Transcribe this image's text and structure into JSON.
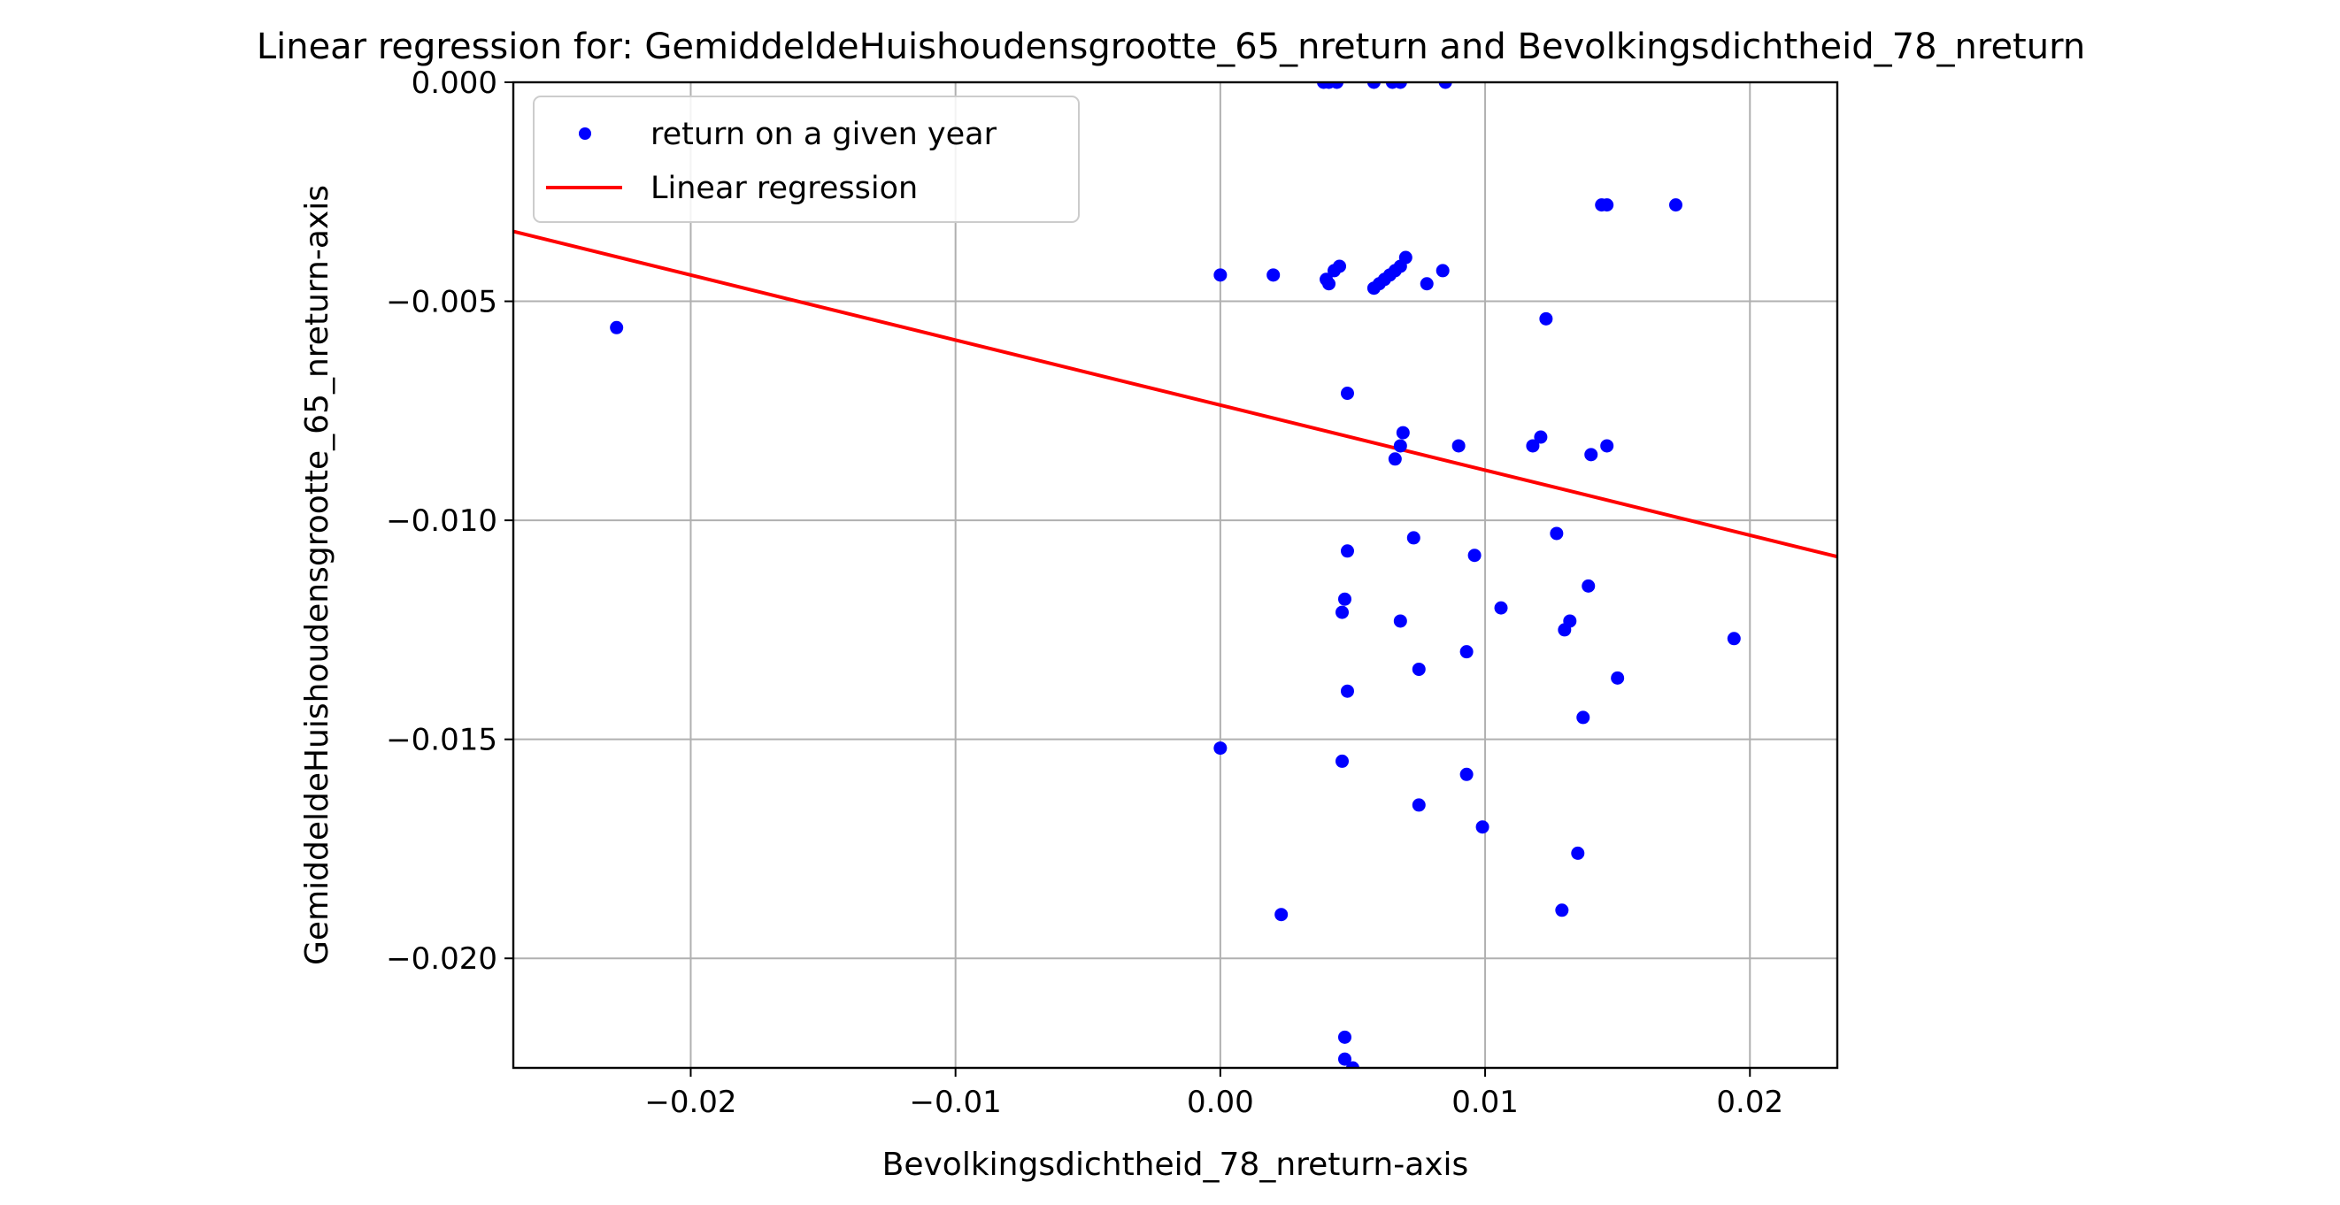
{
  "chart_data": {
    "type": "scatter",
    "title": "Linear regression for: GemiddeldeHuishoudensgrootte_65_nreturn and Bevolkingsdichtheid_78_nreturn",
    "xlabel": "Bevolkingsdichtheid_78_nreturn-axis",
    "ylabel": "GemiddeldeHuishoudensgrootte_65_nreturn-axis",
    "xlim": [
      -0.0267,
      0.0233
    ],
    "ylim": [
      -0.0225,
      0.0
    ],
    "grid": true,
    "legend_position": "top-left",
    "x_ticks": [
      -0.02,
      -0.01,
      0.0,
      0.01,
      0.02
    ],
    "x_tick_labels": [
      "−0.02",
      "−0.01",
      "0.00",
      "0.01",
      "0.02"
    ],
    "y_ticks": [
      0.0,
      -0.005,
      -0.01,
      -0.015,
      -0.02
    ],
    "y_tick_labels": [
      "0.000",
      "−0.005",
      "−0.010",
      "−0.015",
      "−0.020"
    ],
    "colors": {
      "points": "#0000ff",
      "regression": "#ff0000",
      "grid": "#b0b0b0",
      "axes": "#000000"
    },
    "series": [
      {
        "name": "return on a given year",
        "kind": "scatter",
        "points": [
          [
            0.0039,
            0.0
          ],
          [
            0.0041,
            0.0
          ],
          [
            0.0044,
            0.0
          ],
          [
            0.0058,
            0.0
          ],
          [
            0.0065,
            0.0
          ],
          [
            0.0068,
            0.0
          ],
          [
            0.0085,
            0.0
          ],
          [
            0.0144,
            -0.0028
          ],
          [
            0.0146,
            -0.0028
          ],
          [
            0.0172,
            -0.0028
          ],
          [
            0.0,
            -0.0044
          ],
          [
            0.002,
            -0.0044
          ],
          [
            0.004,
            -0.0045
          ],
          [
            0.0041,
            -0.0046
          ],
          [
            0.0043,
            -0.0043
          ],
          [
            0.0045,
            -0.0042
          ],
          [
            0.0058,
            -0.0047
          ],
          [
            0.006,
            -0.0046
          ],
          [
            0.0062,
            -0.0045
          ],
          [
            0.0064,
            -0.0044
          ],
          [
            0.0066,
            -0.0043
          ],
          [
            0.0068,
            -0.0042
          ],
          [
            0.007,
            -0.004
          ],
          [
            0.0078,
            -0.0046
          ],
          [
            0.0084,
            -0.0043
          ],
          [
            0.0123,
            -0.0054
          ],
          [
            -0.0228,
            -0.0056
          ],
          [
            0.0048,
            -0.0071
          ],
          [
            0.0069,
            -0.008
          ],
          [
            0.0068,
            -0.0083
          ],
          [
            0.0066,
            -0.0086
          ],
          [
            0.009,
            -0.0083
          ],
          [
            0.0118,
            -0.0083
          ],
          [
            0.0121,
            -0.0081
          ],
          [
            0.014,
            -0.0085
          ],
          [
            0.0146,
            -0.0083
          ],
          [
            0.0073,
            -0.0104
          ],
          [
            0.0127,
            -0.0103
          ],
          [
            0.0048,
            -0.0107
          ],
          [
            0.0096,
            -0.0108
          ],
          [
            0.0139,
            -0.0115
          ],
          [
            0.0047,
            -0.0118
          ],
          [
            0.0046,
            -0.0121
          ],
          [
            0.0106,
            -0.012
          ],
          [
            0.0068,
            -0.0123
          ],
          [
            0.0132,
            -0.0123
          ],
          [
            0.013,
            -0.0125
          ],
          [
            0.0194,
            -0.0127
          ],
          [
            0.0093,
            -0.013
          ],
          [
            0.0075,
            -0.0134
          ],
          [
            0.015,
            -0.0136
          ],
          [
            0.0048,
            -0.0139
          ],
          [
            0.0137,
            -0.0145
          ],
          [
            0.0,
            -0.0152
          ],
          [
            0.0046,
            -0.0155
          ],
          [
            0.0093,
            -0.0158
          ],
          [
            0.0075,
            -0.0165
          ],
          [
            0.0099,
            -0.017
          ],
          [
            0.0135,
            -0.0176
          ],
          [
            0.0129,
            -0.0189
          ],
          [
            0.0023,
            -0.019
          ],
          [
            0.0047,
            -0.0218
          ],
          [
            0.0047,
            -0.0223
          ],
          [
            0.005,
            -0.0225
          ]
        ]
      },
      {
        "name": "Linear regression",
        "kind": "line",
        "slope": -0.1485,
        "intercept": -0.00737,
        "x_range": [
          -0.0267,
          0.0233
        ]
      }
    ]
  }
}
